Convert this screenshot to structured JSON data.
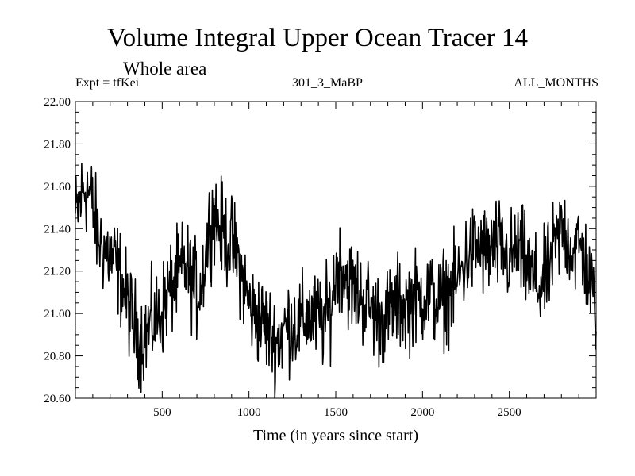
{
  "chart_data": {
    "type": "line",
    "title": "Volume Integral Upper Ocean Tracer 14",
    "subtitle": "Whole area",
    "experiment_label": "Expt = tfKei",
    "run_label": "301_3_MaBP",
    "period_label": "ALL_MONTHS",
    "xlabel": "Time (in years since start)",
    "ylabel": "",
    "xlim": [
      0,
      3000
    ],
    "ylim": [
      20.6,
      22.0
    ],
    "x_ticks": [
      500,
      1000,
      1500,
      2000,
      2500
    ],
    "y_ticks": [
      "20.60",
      "20.80",
      "21.00",
      "21.20",
      "21.40",
      "21.60",
      "21.80",
      "22.00"
    ],
    "grid": false,
    "series": [
      {
        "x": [
          0,
          25,
          50,
          75,
          100,
          125,
          150,
          175,
          200,
          225,
          250,
          275,
          300,
          325,
          350,
          375,
          400,
          425,
          450,
          475,
          500,
          525,
          550,
          575,
          600,
          625,
          650,
          675,
          700,
          725,
          750,
          775,
          800,
          825,
          850,
          875,
          900,
          925,
          950,
          975,
          1000,
          1025,
          1050,
          1075,
          1100,
          1125,
          1150,
          1175,
          1200,
          1225,
          1250,
          1275,
          1300,
          1325,
          1350,
          1375,
          1400,
          1425,
          1450,
          1475,
          1500,
          1525,
          1550,
          1575,
          1600,
          1625,
          1650,
          1675,
          1700,
          1725,
          1750,
          1775,
          1800,
          1825,
          1850,
          1875,
          1900,
          1925,
          1950,
          1975,
          2000,
          2025,
          2050,
          2075,
          2100,
          2125,
          2150,
          2175,
          2200,
          2225,
          2250,
          2275,
          2300,
          2325,
          2350,
          2375,
          2400,
          2425,
          2450,
          2475,
          2500,
          2525,
          2550,
          2575,
          2600,
          2625,
          2650,
          2675,
          2700,
          2725,
          2750,
          2775,
          2800,
          2825,
          2850,
          2875,
          2900,
          2925,
          2950,
          2975,
          3000
        ],
        "values": [
          21.45,
          21.52,
          21.6,
          21.58,
          21.5,
          21.38,
          21.32,
          21.3,
          21.27,
          21.24,
          21.2,
          21.12,
          21.05,
          20.98,
          20.92,
          20.88,
          20.9,
          20.93,
          20.97,
          20.98,
          21.02,
          21.08,
          21.12,
          21.15,
          21.18,
          21.22,
          21.2,
          21.15,
          21.1,
          21.15,
          21.28,
          21.42,
          21.48,
          21.42,
          21.38,
          21.35,
          21.33,
          21.28,
          21.22,
          21.12,
          21.05,
          21.0,
          20.98,
          20.96,
          20.94,
          20.9,
          20.87,
          20.88,
          20.92,
          20.95,
          20.96,
          20.94,
          20.95,
          20.98,
          20.99,
          20.97,
          20.98,
          20.96,
          20.99,
          21.05,
          21.2,
          21.25,
          21.2,
          21.15,
          21.12,
          21.1,
          21.08,
          21.06,
          21.03,
          21.0,
          20.98,
          20.97,
          20.99,
          21.02,
          21.04,
          21.05,
          21.03,
          21.05,
          21.08,
          21.06,
          21.08,
          21.1,
          21.08,
          21.06,
          21.05,
          21.08,
          21.1,
          21.12,
          21.15,
          21.2,
          21.25,
          21.28,
          21.3,
          21.32,
          21.3,
          21.28,
          21.3,
          21.32,
          21.3,
          21.28,
          21.25,
          21.28,
          21.3,
          21.27,
          21.22,
          21.18,
          21.15,
          21.12,
          21.15,
          21.2,
          21.28,
          21.33,
          21.4,
          21.38,
          21.32,
          21.3,
          21.32,
          21.28,
          21.2,
          21.1,
          21.02
        ]
      }
    ]
  }
}
